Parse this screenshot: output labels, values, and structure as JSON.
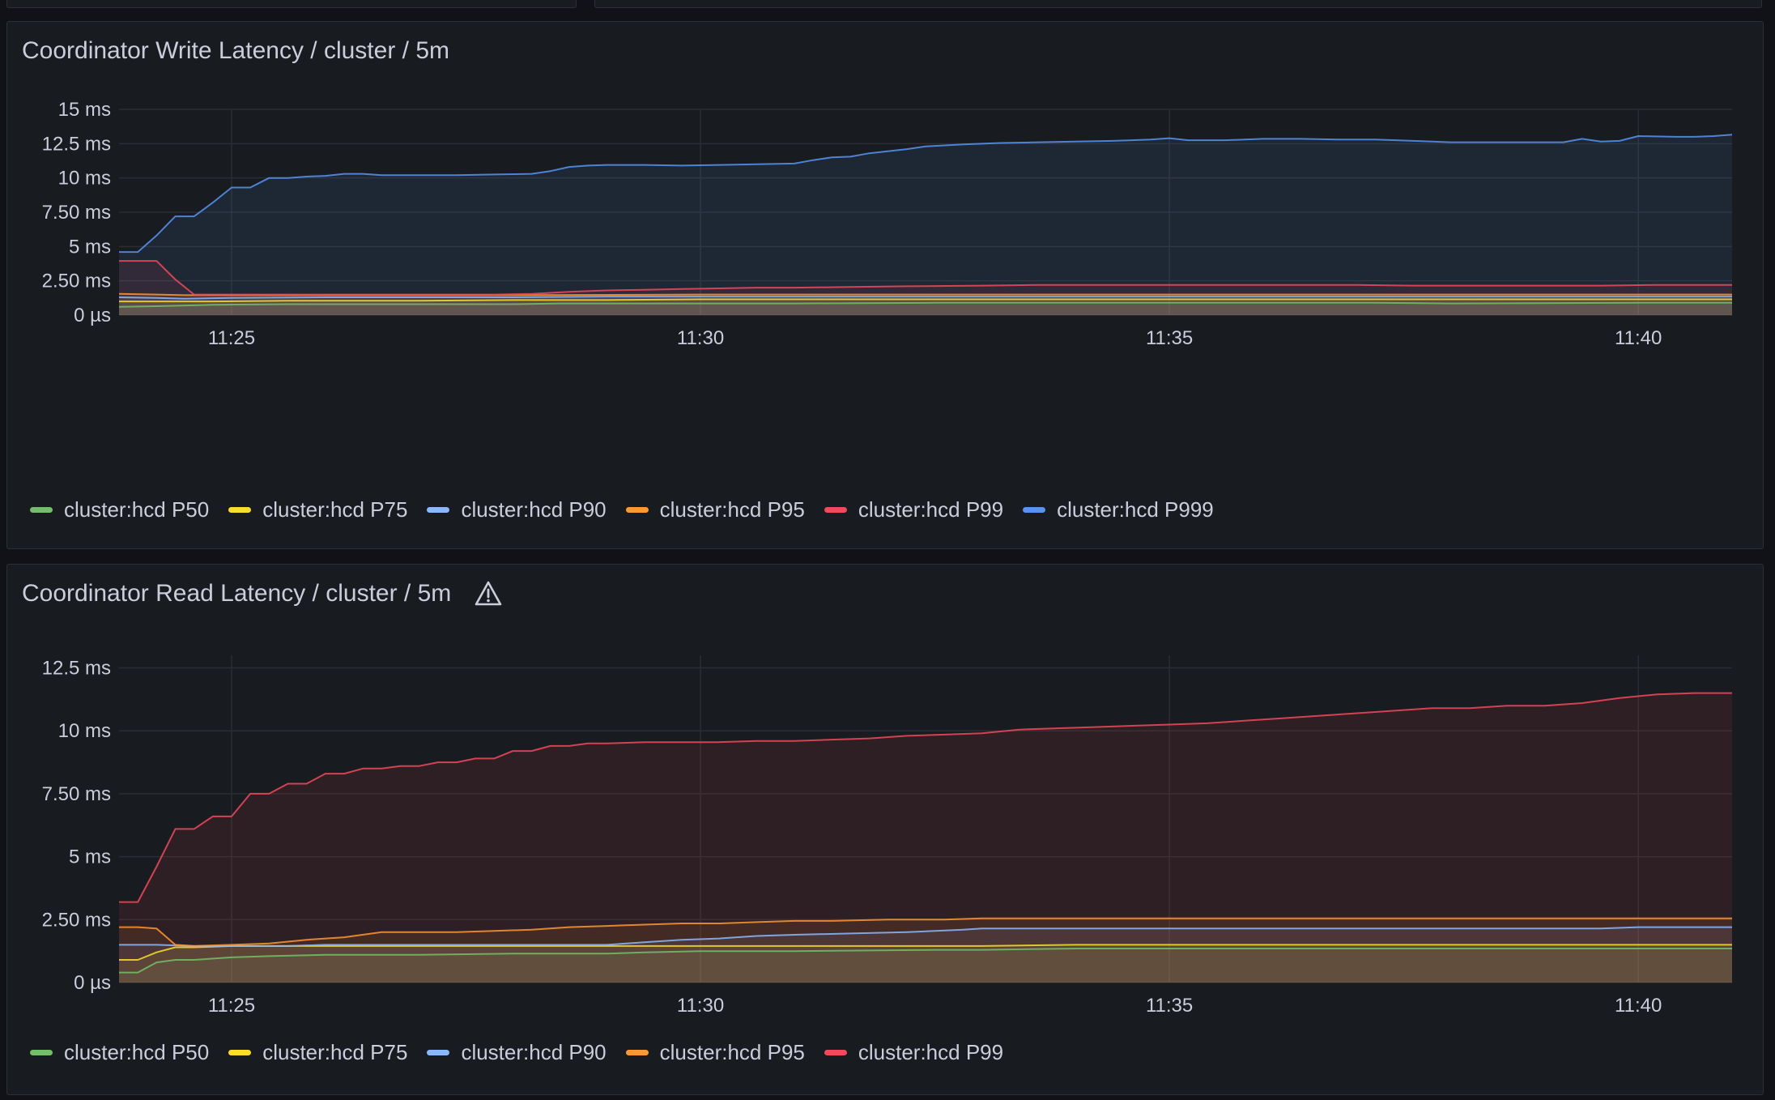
{
  "chart_data": [
    {
      "type": "area",
      "title": "Coordinator Write Latency / cluster / 5m",
      "xlabel": "",
      "ylabel": "",
      "x_ticks": [
        "11:25",
        "11:30",
        "11:35",
        "11:40"
      ],
      "y_ticks": [
        "0 µs",
        "2.50 ms",
        "5 ms",
        "7.50 ms",
        "10 ms",
        "12.5 ms",
        "15 ms"
      ],
      "ylim": [
        0,
        15
      ],
      "x_unit": "minutes",
      "xlim": [
        23.8,
        41.0
      ],
      "grid": true,
      "legend_position": "bottom-left",
      "series": [
        {
          "name": "cluster:hcd P50",
          "color": "#73bf69",
          "x": [
            23.8,
            24.2,
            24.8,
            25.6,
            27,
            28,
            28.5,
            30,
            31,
            32.5,
            34,
            36,
            37.2,
            38,
            40,
            41.0
          ],
          "y": [
            0.6,
            0.65,
            0.75,
            0.8,
            0.8,
            0.8,
            0.85,
            0.85,
            0.85,
            0.9,
            0.9,
            0.9,
            0.9,
            0.85,
            0.9,
            0.9
          ]
        },
        {
          "name": "cluster:hcd P75",
          "color": "#fade2a",
          "x": [
            23.8,
            24.2,
            24.8,
            25.6,
            27,
            28,
            29,
            30,
            32,
            34,
            36,
            38,
            40,
            41.0
          ],
          "y": [
            1.0,
            1.0,
            1.0,
            1.05,
            1.05,
            1.1,
            1.1,
            1.15,
            1.15,
            1.15,
            1.15,
            1.15,
            1.15,
            1.15
          ]
        },
        {
          "name": "cluster:hcd P90",
          "color": "#8ab8ff",
          "x": [
            23.8,
            24.2,
            24.5,
            25,
            26,
            28,
            29,
            30,
            32,
            34,
            36,
            38,
            40,
            41.0
          ],
          "y": [
            1.3,
            1.25,
            1.2,
            1.25,
            1.3,
            1.3,
            1.35,
            1.35,
            1.35,
            1.35,
            1.35,
            1.35,
            1.35,
            1.35
          ]
        },
        {
          "name": "cluster:hcd P95",
          "color": "#ff9830",
          "x": [
            23.8,
            24.2,
            24.5,
            25,
            26,
            28,
            30,
            32,
            34,
            36,
            38,
            40,
            41.0
          ],
          "y": [
            1.55,
            1.5,
            1.45,
            1.45,
            1.45,
            1.45,
            1.5,
            1.5,
            1.5,
            1.5,
            1.5,
            1.5,
            1.5
          ]
        },
        {
          "name": "cluster:hcd P99",
          "color": "#f2495c",
          "x": [
            23.8,
            24.0,
            24.2,
            24.4,
            24.6,
            25,
            26,
            27,
            27.8,
            28.2,
            28.6,
            29,
            29.4,
            29.8,
            30.2,
            30.6,
            31,
            31.6,
            32.2,
            33,
            33.6,
            34.2,
            35,
            35.6,
            36.2,
            37,
            37.6,
            38.2,
            39,
            39.6,
            40.2,
            41.0
          ],
          "y": [
            3.95,
            3.95,
            3.95,
            2.6,
            1.5,
            1.5,
            1.5,
            1.5,
            1.5,
            1.55,
            1.7,
            1.8,
            1.85,
            1.9,
            1.95,
            2.0,
            2.0,
            2.05,
            2.1,
            2.15,
            2.2,
            2.2,
            2.2,
            2.2,
            2.2,
            2.2,
            2.15,
            2.15,
            2.15,
            2.15,
            2.2,
            2.2
          ]
        },
        {
          "name": "cluster:hcd P999",
          "color": "#5794f2",
          "x": [
            23.8,
            24.0,
            24.2,
            24.4,
            24.6,
            24.8,
            25.0,
            25.2,
            25.4,
            25.6,
            25.8,
            26.0,
            26.2,
            26.4,
            26.6,
            27.0,
            27.4,
            27.8,
            28.2,
            28.4,
            28.6,
            28.8,
            29.0,
            29.4,
            29.8,
            30.2,
            30.6,
            31.0,
            31.2,
            31.4,
            31.6,
            31.8,
            32.2,
            32.4,
            32.8,
            33.2,
            33.6,
            34.0,
            34.4,
            34.8,
            35.0,
            35.2,
            35.6,
            36.0,
            36.4,
            36.8,
            37.2,
            37.6,
            38.0,
            38.4,
            38.8,
            39.2,
            39.4,
            39.6,
            39.8,
            40.0,
            40.4,
            40.6,
            40.8,
            41.0
          ],
          "y": [
            4.6,
            4.6,
            5.8,
            7.2,
            7.2,
            8.2,
            9.3,
            9.3,
            10.0,
            10.0,
            10.1,
            10.15,
            10.3,
            10.3,
            10.2,
            10.2,
            10.2,
            10.25,
            10.3,
            10.5,
            10.8,
            10.9,
            10.95,
            10.95,
            10.9,
            10.95,
            11.0,
            11.05,
            11.3,
            11.5,
            11.55,
            11.8,
            12.1,
            12.3,
            12.45,
            12.55,
            12.6,
            12.65,
            12.7,
            12.8,
            12.9,
            12.75,
            12.75,
            12.85,
            12.85,
            12.8,
            12.8,
            12.7,
            12.6,
            12.6,
            12.6,
            12.6,
            12.85,
            12.65,
            12.7,
            13.05,
            13.0,
            13.0,
            13.05,
            13.15
          ]
        }
      ]
    },
    {
      "type": "area",
      "title": "Coordinator Read Latency / cluster / 5m",
      "xlabel": "",
      "ylabel": "",
      "x_ticks": [
        "11:25",
        "11:30",
        "11:35",
        "11:40"
      ],
      "y_ticks": [
        "0 µs",
        "2.50 ms",
        "5 ms",
        "7.50 ms",
        "10 ms",
        "12.5 ms"
      ],
      "ylim": [
        0,
        13
      ],
      "x_unit": "minutes",
      "xlim": [
        23.8,
        41.0
      ],
      "grid": true,
      "legend_position": "bottom-left",
      "series": [
        {
          "name": "cluster:hcd P50",
          "color": "#73bf69",
          "x": [
            23.8,
            24.0,
            24.2,
            24.4,
            24.6,
            25.0,
            25.4,
            26,
            27,
            28,
            29,
            29.4,
            30,
            31,
            32.5,
            33,
            34,
            36,
            38,
            40,
            41.0
          ],
          "y": [
            0.4,
            0.4,
            0.8,
            0.9,
            0.9,
            1.0,
            1.05,
            1.1,
            1.1,
            1.15,
            1.15,
            1.2,
            1.25,
            1.25,
            1.3,
            1.3,
            1.35,
            1.35,
            1.35,
            1.35,
            1.35
          ]
        },
        {
          "name": "cluster:hcd P75",
          "color": "#fade2a",
          "x": [
            23.8,
            24.0,
            24.2,
            24.4,
            24.6,
            25.0,
            26,
            27,
            28,
            29,
            30,
            31,
            32,
            33,
            34,
            36,
            38,
            40,
            41.0
          ],
          "y": [
            0.9,
            0.9,
            1.2,
            1.4,
            1.4,
            1.45,
            1.45,
            1.45,
            1.45,
            1.45,
            1.45,
            1.45,
            1.45,
            1.45,
            1.5,
            1.5,
            1.5,
            1.5,
            1.5
          ]
        },
        {
          "name": "cluster:hcd P90",
          "color": "#8ab8ff",
          "x": [
            23.8,
            24.2,
            24.6,
            25.0,
            25.6,
            26,
            27,
            28,
            29,
            29.4,
            29.8,
            30.2,
            30.6,
            31,
            31.6,
            32.2,
            32.8,
            33,
            34,
            36,
            38,
            39.6,
            40.0,
            41.0
          ],
          "y": [
            1.5,
            1.5,
            1.45,
            1.45,
            1.45,
            1.5,
            1.5,
            1.5,
            1.5,
            1.6,
            1.7,
            1.75,
            1.85,
            1.9,
            1.95,
            2.0,
            2.1,
            2.15,
            2.15,
            2.15,
            2.15,
            2.15,
            2.2,
            2.2
          ]
        },
        {
          "name": "cluster:hcd P95",
          "color": "#ff9830",
          "x": [
            23.8,
            24.0,
            24.2,
            24.4,
            24.6,
            25.0,
            25.4,
            25.8,
            26.2,
            26.6,
            27.0,
            27.4,
            27.8,
            28.2,
            28.6,
            29.0,
            29.4,
            29.8,
            30.2,
            30.6,
            31,
            31.4,
            32,
            32.6,
            33,
            34,
            36,
            38,
            40,
            41.0
          ],
          "y": [
            2.2,
            2.2,
            2.15,
            1.5,
            1.45,
            1.5,
            1.55,
            1.7,
            1.8,
            2.0,
            2.0,
            2.0,
            2.05,
            2.1,
            2.2,
            2.25,
            2.3,
            2.35,
            2.35,
            2.4,
            2.45,
            2.45,
            2.5,
            2.5,
            2.55,
            2.55,
            2.55,
            2.55,
            2.55,
            2.55
          ]
        },
        {
          "name": "cluster:hcd P99",
          "color": "#f2495c",
          "x": [
            23.8,
            24.0,
            24.2,
            24.4,
            24.6,
            24.8,
            25.0,
            25.2,
            25.4,
            25.6,
            25.8,
            26.0,
            26.2,
            26.4,
            26.6,
            26.8,
            27.0,
            27.2,
            27.4,
            27.6,
            27.8,
            28.0,
            28.2,
            28.4,
            28.6,
            28.8,
            29.0,
            29.4,
            29.8,
            30.2,
            30.6,
            31.0,
            31.4,
            31.8,
            32.2,
            32.6,
            33.0,
            33.4,
            33.8,
            34.2,
            34.6,
            35.0,
            35.4,
            35.8,
            36.2,
            36.6,
            37.0,
            37.4,
            37.8,
            38.2,
            38.6,
            39.0,
            39.4,
            39.8,
            40.2,
            40.6,
            41.0
          ],
          "y": [
            3.2,
            3.2,
            4.6,
            6.1,
            6.1,
            6.6,
            6.6,
            7.5,
            7.5,
            7.9,
            7.9,
            8.3,
            8.3,
            8.5,
            8.5,
            8.6,
            8.6,
            8.75,
            8.75,
            8.9,
            8.9,
            9.2,
            9.2,
            9.4,
            9.4,
            9.5,
            9.5,
            9.55,
            9.55,
            9.55,
            9.6,
            9.6,
            9.65,
            9.7,
            9.8,
            9.85,
            9.9,
            10.05,
            10.1,
            10.15,
            10.2,
            10.25,
            10.3,
            10.4,
            10.5,
            10.6,
            10.7,
            10.8,
            10.9,
            10.9,
            11.0,
            11.0,
            11.1,
            11.3,
            11.45,
            11.5,
            11.5
          ]
        }
      ]
    }
  ]
}
